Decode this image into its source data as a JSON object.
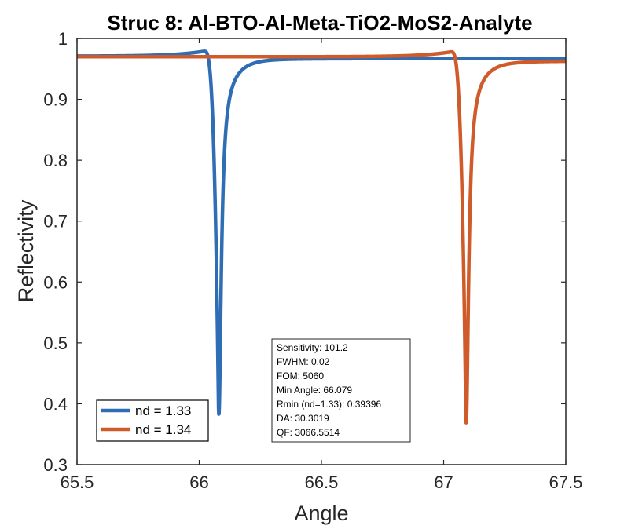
{
  "chart_data": {
    "type": "line",
    "title": "Struc 8: Al-BTO-Al-Meta-TiO2-MoS2-Analyte",
    "xlabel": "Angle",
    "ylabel": "Reflectivity",
    "xlim": [
      65.5,
      67.5
    ],
    "ylim": [
      0.3,
      1
    ],
    "xticks": [
      "65.5",
      "66",
      "66.5",
      "67",
      "67.5"
    ],
    "yticks": [
      "0.3",
      "0.4",
      "0.5",
      "0.6",
      "0.7",
      "0.8",
      "0.9",
      "1"
    ],
    "grid": false,
    "legend_position": "bottom-left",
    "series": [
      {
        "name": "nd = 1.33",
        "color": "#2f6db5",
        "baseline": 0.971,
        "max_y": 0.979,
        "max_x": 66.02,
        "min_x": 66.079,
        "min_y": 0.394,
        "end_y": 0.967
      },
      {
        "name": "nd = 1.34",
        "color": "#cf5a2a",
        "baseline": 0.97,
        "max_y": 0.978,
        "max_x": 67.03,
        "min_x": 67.091,
        "min_y": 0.38,
        "end_y": 0.963
      }
    ],
    "annotation": [
      "Sensitivity: 101.2",
      "FWHM: 0.02",
      "FOM: 5060",
      "Min Angle: 66.079",
      "Rmin (nd=1.33): 0.39396",
      "DA: 30.3019",
      "QF: 3066.5514"
    ]
  }
}
